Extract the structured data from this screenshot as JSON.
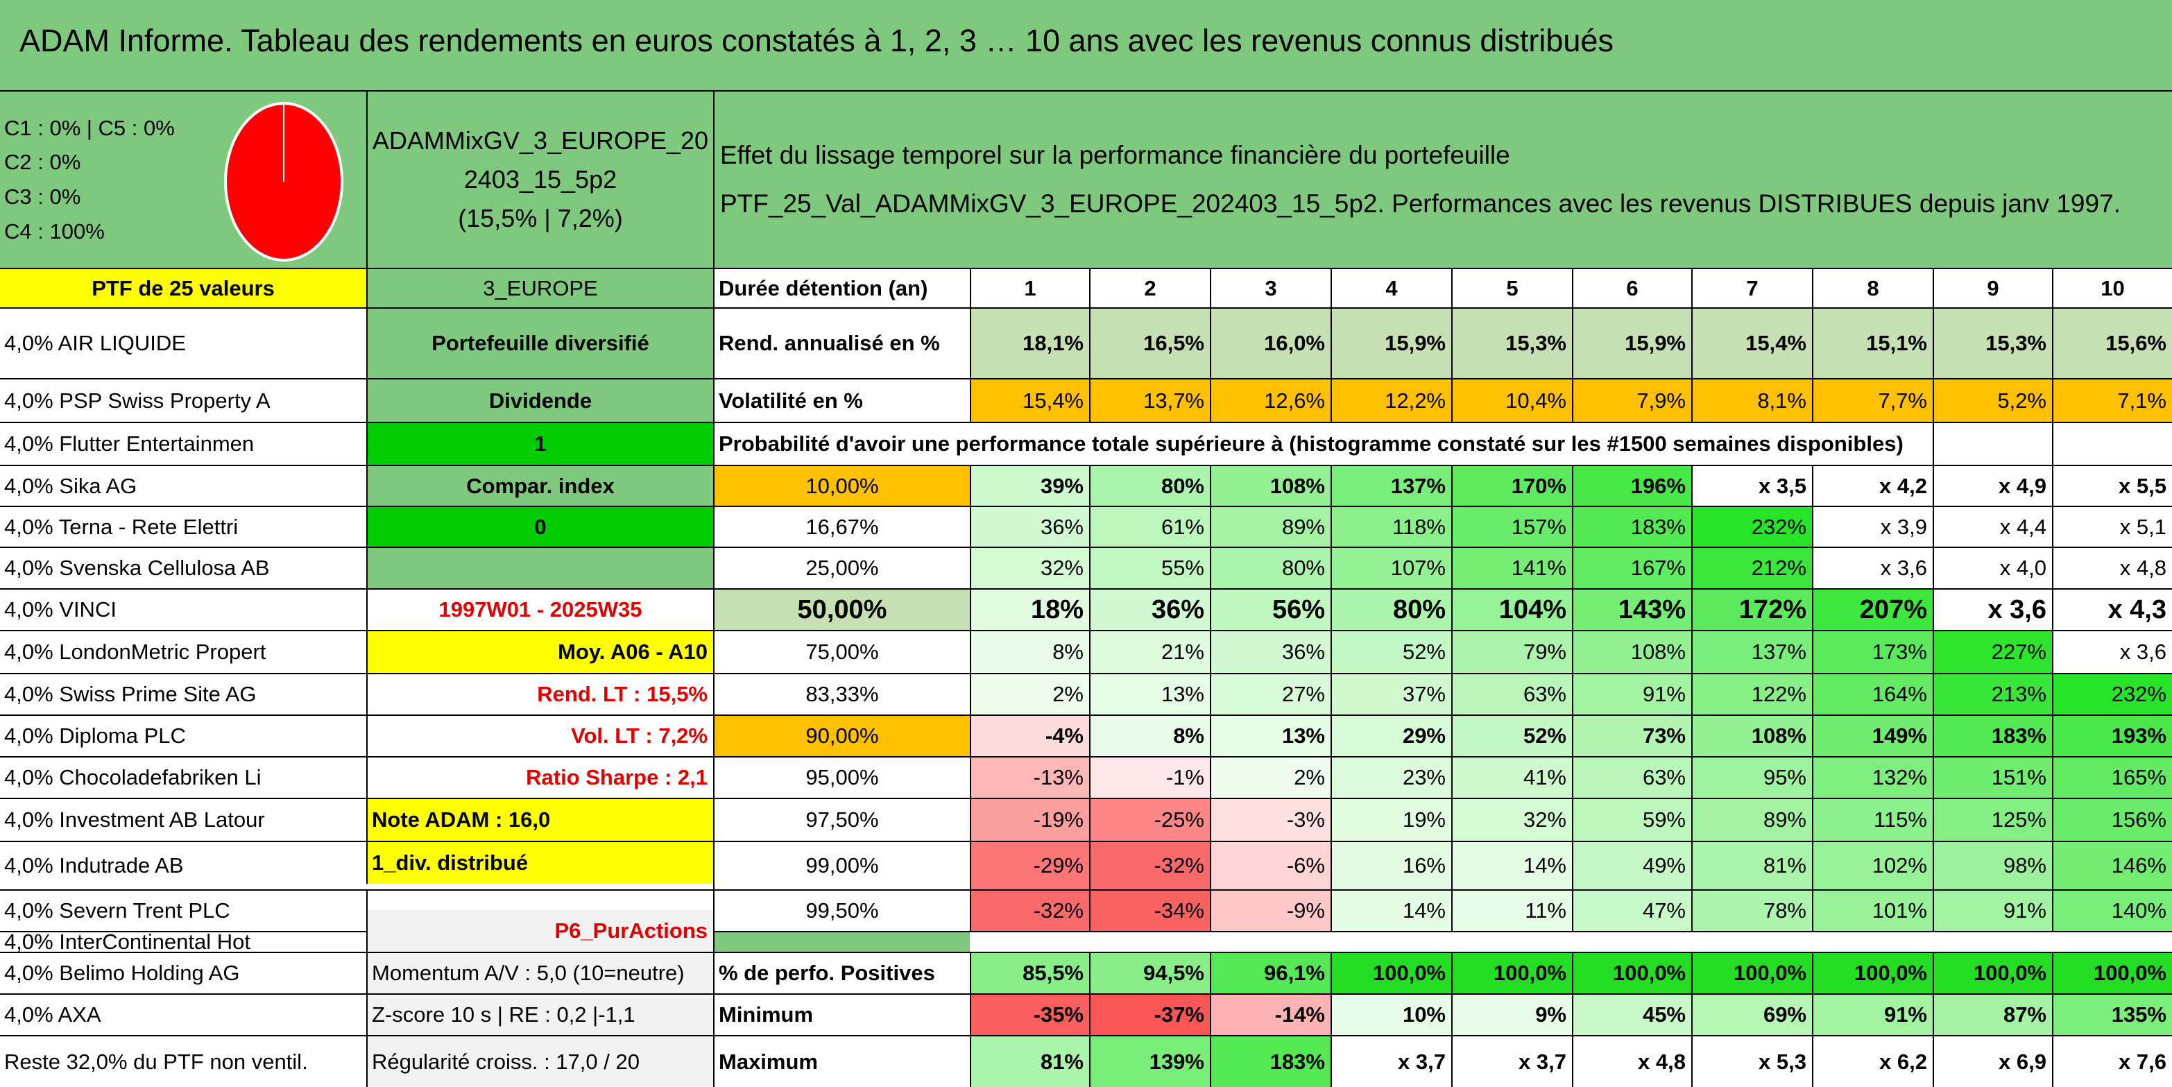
{
  "title": "ADAM Informe. Tableau des rendements en euros constatés à 1, 2, 3 … 10 ans avec les revenus connus distribués",
  "mix": [
    "C1 : 0% | C5 : 0%",
    "C2 : 0%",
    "C3 : 0%",
    "C4 : 100%"
  ],
  "pie_color": "#ff0000",
  "portfolio_name": [
    "ADAMMixGV_3_EUROPE_20",
    "2403_15_5p2",
    "(15,5% | 7,2%)"
  ],
  "effect_lines": [
    "Effet du lissage temporel sur la performance financière du portefeuille",
    "PTF_25_Val_ADAMMixGV_3_EUROPE_202403_15_5p2. Performances avec les revenus DISTRIBUES depuis janv 1997."
  ],
  "ptf_label": "PTF de 25 valeurs",
  "holdings": [
    "4,0% AIR LIQUIDE",
    "4,0% PSP Swiss Property A",
    "4,0% Flutter Entertainmen",
    "4,0% Sika AG",
    "4,0% Terna - Rete Elettri",
    "4,0% Svenska Cellulosa AB",
    "4,0% VINCI",
    "4,0% LondonMetric Propert",
    "4,0% Swiss Prime Site AG",
    "4,0% Diploma PLC",
    "4,0% Chocoladefabriken Li",
    "4,0% Investment AB Latour",
    "4,0% Indutrade AB",
    "4,0% Severn Trent PLC",
    "4,0% InterContinental Hot",
    "4,0% Belimo Holding AG",
    "4,0% AXA",
    "Reste 32,0% du PTF non ventil."
  ],
  "info": [
    "3_EUROPE",
    "Portefeuille diversifié",
    "Dividende",
    "1",
    "Compar. index",
    "0",
    "",
    "1997W01 - 2025W35",
    "Moy. A06 - A10",
    "Rend. LT : 15,5%",
    "Vol. LT : 7,2%",
    "Ratio Sharpe : 2,1",
    "Note ADAM : 16,0",
    "1_div. distribué",
    "",
    "P6_PurActions",
    "Momentum A/V : 5,0 (10=neutre)",
    "Z-score 10 s | RE : 0,2 |-1,1",
    "Régularité croiss. : 17,0 / 20"
  ],
  "holding_label": "Durée détention (an)",
  "years": [
    "1",
    "2",
    "3",
    "4",
    "5",
    "6",
    "7",
    "8",
    "9",
    "10"
  ],
  "rend_label": "Rend. annualisé en %",
  "rend": [
    "18,1%",
    "16,5%",
    "16,0%",
    "15,9%",
    "15,3%",
    "15,9%",
    "15,4%",
    "15,1%",
    "15,3%",
    "15,6%"
  ],
  "vol_label": "Volatilité en %",
  "vol": [
    "15,4%",
    "13,7%",
    "12,6%",
    "12,2%",
    "10,4%",
    "7,9%",
    "8,1%",
    "7,7%",
    "5,2%",
    "7,1%"
  ],
  "prob_label": "Probabilité d'avoir une performance totale supérieure à (histogramme constaté sur les #1500 semaines disponibles)",
  "prob_rows": [
    {
      "pct": "10,00%",
      "v": [
        "39%",
        "80%",
        "108%",
        "137%",
        "170%",
        "196%",
        "x 3,5",
        "x 4,2",
        "x 4,9",
        "x 5,5"
      ]
    },
    {
      "pct": "16,67%",
      "v": [
        "36%",
        "61%",
        "89%",
        "118%",
        "157%",
        "183%",
        "232%",
        "x 3,9",
        "x 4,4",
        "x 5,1"
      ]
    },
    {
      "pct": "25,00%",
      "v": [
        "32%",
        "55%",
        "80%",
        "107%",
        "141%",
        "167%",
        "212%",
        "x 3,6",
        "x 4,0",
        "x 4,8"
      ]
    },
    {
      "pct": "50,00%",
      "v": [
        "18%",
        "36%",
        "56%",
        "80%",
        "104%",
        "143%",
        "172%",
        "207%",
        "x 3,6",
        "x 4,3"
      ]
    },
    {
      "pct": "75,00%",
      "v": [
        "8%",
        "21%",
        "36%",
        "52%",
        "79%",
        "108%",
        "137%",
        "173%",
        "227%",
        "x 3,6"
      ]
    },
    {
      "pct": "83,33%",
      "v": [
        "2%",
        "13%",
        "27%",
        "37%",
        "63%",
        "91%",
        "122%",
        "164%",
        "213%",
        "232%"
      ]
    },
    {
      "pct": "90,00%",
      "v": [
        "-4%",
        "8%",
        "13%",
        "29%",
        "52%",
        "73%",
        "108%",
        "149%",
        "183%",
        "193%"
      ]
    },
    {
      "pct": "95,00%",
      "v": [
        "-13%",
        "-1%",
        "2%",
        "23%",
        "41%",
        "63%",
        "95%",
        "132%",
        "151%",
        "165%"
      ]
    },
    {
      "pct": "97,50%",
      "v": [
        "-19%",
        "-25%",
        "-3%",
        "19%",
        "32%",
        "59%",
        "89%",
        "115%",
        "125%",
        "156%"
      ]
    },
    {
      "pct": "99,00%",
      "v": [
        "-29%",
        "-32%",
        "-6%",
        "16%",
        "14%",
        "49%",
        "81%",
        "102%",
        "98%",
        "146%"
      ]
    },
    {
      "pct": "99,50%",
      "v": [
        "-32%",
        "-34%",
        "-9%",
        "14%",
        "11%",
        "47%",
        "78%",
        "101%",
        "91%",
        "140%"
      ]
    }
  ],
  "pos_label": "% de perfo. Positives",
  "pos": [
    "85,5%",
    "94,5%",
    "96,1%",
    "100,0%",
    "100,0%",
    "100,0%",
    "100,0%",
    "100,0%",
    "100,0%",
    "100,0%"
  ],
  "min_label": "Minimum",
  "min": [
    "-35%",
    "-37%",
    "-14%",
    "10%",
    "9%",
    "45%",
    "69%",
    "91%",
    "87%",
    "135%"
  ],
  "max_label": "Maximum",
  "max": [
    "81%",
    "139%",
    "183%",
    "x 3,7",
    "x 3,7",
    "x 4,8",
    "x 5,3",
    "x 6,2",
    "x 6,9",
    "x 7,6"
  ],
  "colors": {
    "header_green": "#7fc97f",
    "yellow": "#ffff00",
    "bright_green": "#00cc00",
    "orange": "#ffc000",
    "red_text": "#e00000"
  }
}
